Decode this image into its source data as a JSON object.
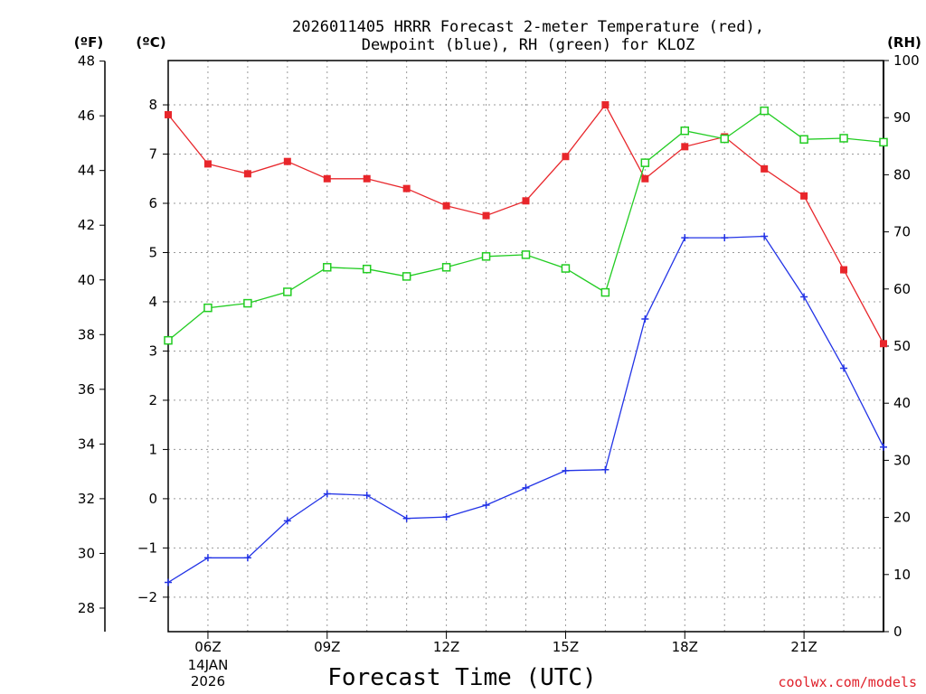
{
  "chart_data": {
    "type": "line",
    "title": [
      "2026011405 HRRR Forecast 2-meter Temperature (red),",
      "Dewpoint (blue), RH (green) for KLOZ"
    ],
    "xlabel": "Forecast Time (UTC)",
    "credit": "coolwx.com/models",
    "units": {
      "fahrenheit": "(ºF)",
      "celsius": "(ºC)",
      "rh": "(RH)"
    },
    "x_hours": [
      5,
      6,
      7,
      8,
      9,
      10,
      11,
      12,
      13,
      14,
      15,
      16,
      17,
      18,
      19,
      20,
      21,
      22,
      23
    ],
    "x_range": [
      5,
      23
    ],
    "x_ticks": [
      {
        "hour": 6,
        "label": "06Z",
        "sub": [
          "14JAN",
          "2026"
        ]
      },
      {
        "hour": 9,
        "label": "09Z",
        "sub": []
      },
      {
        "hour": 12,
        "label": "12Z",
        "sub": []
      },
      {
        "hour": 15,
        "label": "15Z",
        "sub": []
      },
      {
        "hour": 18,
        "label": "18Z",
        "sub": []
      },
      {
        "hour": 21,
        "label": "21Z",
        "sub": []
      }
    ],
    "celsius_axis": {
      "range": [
        -2.7,
        8.9
      ],
      "ticks": [
        -2,
        -1,
        0,
        1,
        2,
        3,
        4,
        5,
        6,
        7,
        8
      ],
      "tick_labels": [
        "−2",
        "−1",
        "0",
        "1",
        "2",
        "3",
        "4",
        "5",
        "6",
        "7",
        "8"
      ]
    },
    "fahrenheit_axis": {
      "ticks": [
        28,
        30,
        32,
        34,
        36,
        38,
        40,
        42,
        44,
        46,
        48
      ]
    },
    "rh_axis": {
      "range": [
        0,
        100
      ],
      "ticks": [
        0,
        10,
        20,
        30,
        40,
        50,
        60,
        70,
        80,
        90,
        100
      ]
    },
    "series": [
      {
        "name": "Temperature",
        "unit": "C",
        "color": "#e8262b",
        "marker": "filled-square",
        "values": [
          7.8,
          6.8,
          6.6,
          6.85,
          6.5,
          6.5,
          6.3,
          5.95,
          5.75,
          6.05,
          6.95,
          8.0,
          6.5,
          7.15,
          7.35,
          6.7,
          6.15,
          4.65,
          3.15
        ]
      },
      {
        "name": "Dewpoint",
        "unit": "C",
        "color": "#2233e6",
        "marker": "plus",
        "values": [
          -1.7,
          -1.2,
          -1.2,
          -0.45,
          0.1,
          0.07,
          -0.4,
          -0.37,
          -0.13,
          0.22,
          0.57,
          0.59,
          3.65,
          5.3,
          5.3,
          5.33,
          4.1,
          2.65,
          1.05
        ]
      },
      {
        "name": "RH",
        "unit": "%",
        "color": "#22cc22",
        "marker": "open-square",
        "values": [
          51,
          56.7,
          57.5,
          59.5,
          63.8,
          63.5,
          62.2,
          63.8,
          65.7,
          66.0,
          63.6,
          59.4,
          82.1,
          87.7,
          86.3,
          91.2,
          86.2,
          86.4,
          85.7
        ]
      }
    ]
  }
}
